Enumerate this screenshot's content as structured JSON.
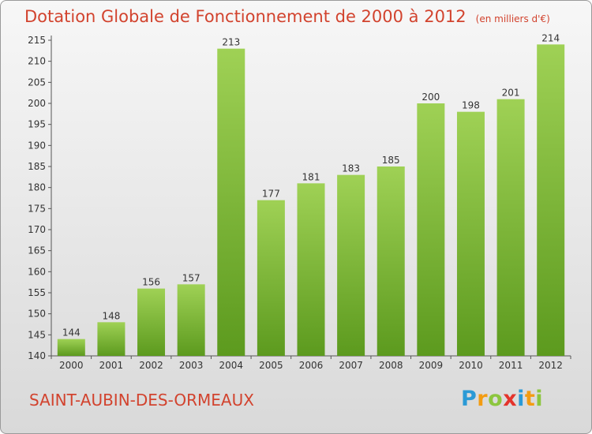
{
  "header": {
    "title": "Dotation Globale de Fonctionnement de 2000 à 2012",
    "subtitle": "(en milliers d'€)"
  },
  "footer": {
    "commune": "SAINT-AUBIN-DES-ORMEAUX",
    "logo": "Proxiti"
  },
  "colors": {
    "title": "#d2432e",
    "bar_top": "#9fd155",
    "bar_bottom": "#5c9a1e",
    "axis": "#555555"
  },
  "chart_data": {
    "type": "bar",
    "title": "Dotation Globale de Fonctionnement de 2000 à 2012",
    "xlabel": "",
    "ylabel": "",
    "categories": [
      "2000",
      "2001",
      "2002",
      "2003",
      "2004",
      "2005",
      "2006",
      "2007",
      "2008",
      "2009",
      "2010",
      "2011",
      "2012"
    ],
    "values": [
      144,
      148,
      156,
      157,
      213,
      177,
      181,
      183,
      185,
      200,
      198,
      201,
      214
    ],
    "ylim": [
      140,
      215
    ],
    "yticks": [
      140,
      145,
      150,
      155,
      160,
      165,
      170,
      175,
      180,
      185,
      190,
      195,
      200,
      205,
      210,
      215
    ],
    "grid": false,
    "legend": "none"
  }
}
